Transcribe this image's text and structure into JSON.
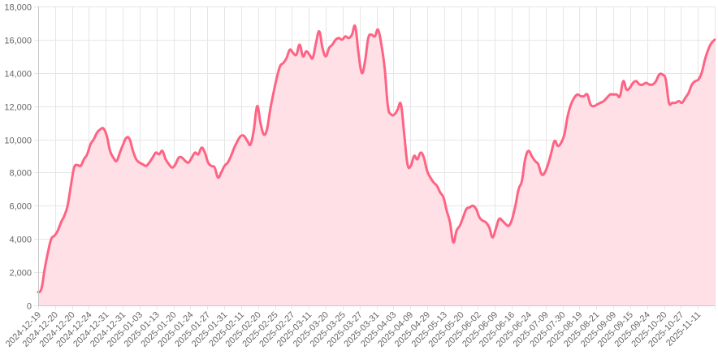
{
  "chart_data": {
    "type": "area",
    "title": "",
    "xlabel": "",
    "ylabel": "",
    "ylim": [
      0,
      18000
    ],
    "y_ticks": [
      0,
      2000,
      4000,
      6000,
      8000,
      10000,
      12000,
      14000,
      16000,
      18000
    ],
    "y_tick_labels": [
      "0",
      "2,000",
      "4,000",
      "6,000",
      "8,000",
      "10,000",
      "12,000",
      "14,000",
      "16,000",
      "18,000"
    ],
    "x_tick_labels": [
      "2024-12-19",
      "2024-12-20",
      "2024-12-20",
      "2024-12-24",
      "2024-12-31",
      "2024-12-31",
      "2025-01-03",
      "2025-01-13",
      "2025-01-20",
      "2025-01-24",
      "2025-01-27",
      "2025-01-31",
      "2025-02-11",
      "2025-02-20",
      "2025-02-25",
      "2025-02-27",
      "2025-03-11",
      "2025-03-20",
      "2025-03-25",
      "2025-03-27",
      "2025-03-31",
      "2025-04-03",
      "2025-04-09",
      "2025-04-29",
      "2025-05-13",
      "2025-05-20",
      "2025-06-02",
      "2025-06-09",
      "2025-06-16",
      "2025-06-24",
      "2025-07-09",
      "2025-07-30",
      "2025-08-19",
      "2025-08-21",
      "2025-09-09",
      "2025-09-15",
      "2025-09-24",
      "2025-10-20",
      "2025-10-27",
      "2025-11-11"
    ],
    "grid": true,
    "line_color": "#ff6384",
    "fill_color": "#ffe0e6",
    "series": [
      {
        "values": [
          800,
          1000,
          2200,
          3200,
          4000,
          4200,
          4500,
          5000,
          5400,
          6000,
          7200,
          8300,
          8450,
          8400,
          8800,
          9100,
          9700,
          10000,
          10400,
          10600,
          10650,
          10200,
          9300,
          8900,
          8700,
          9200,
          9700,
          10100,
          10000,
          9300,
          8800,
          8600,
          8500,
          8400,
          8600,
          8900,
          9200,
          9100,
          9300,
          8800,
          8500,
          8300,
          8500,
          8900,
          8900,
          8700,
          8600,
          8900,
          9200,
          9100,
          9500,
          9200,
          8600,
          8400,
          8300,
          7700,
          8000,
          8400,
          8600,
          9000,
          9500,
          9900,
          10200,
          10200,
          9900,
          9700,
          10600,
          12000,
          11000,
          10300,
          10600,
          11800,
          12800,
          13700,
          14400,
          14600,
          14900,
          15400,
          15200,
          15100,
          15700,
          15000,
          15300,
          15100,
          14900,
          15800,
          16500,
          15500,
          15000,
          15500,
          15700,
          16000,
          16100,
          16000,
          16200,
          16100,
          16300,
          16800,
          15200,
          14000,
          14700,
          16100,
          16300,
          16200,
          16600,
          15700,
          14300,
          12000,
          11500,
          11500,
          11800,
          12100,
          10300,
          8500,
          8400,
          9000,
          8800,
          9200,
          8900,
          8100,
          7700,
          7400,
          7200,
          6800,
          6500,
          5700,
          5000,
          3800,
          4500,
          4800,
          5300,
          5800,
          5900,
          6000,
          5800,
          5300,
          5100,
          5000,
          4700,
          4100,
          4600,
          5200,
          5100,
          4900,
          4800,
          5200,
          6000,
          7000,
          7500,
          8800,
          9300,
          9000,
          8700,
          8500,
          7900,
          8000,
          8500,
          9200,
          9900,
          9600,
          9800,
          10300,
          11400,
          12100,
          12500,
          12700,
          12600,
          12600,
          12700,
          12100,
          12000,
          12100,
          12200,
          12300,
          12500,
          12700,
          12700,
          12700,
          12600,
          13500,
          13000,
          13100,
          13400,
          13500,
          13300,
          13300,
          13400,
          13300,
          13300,
          13500,
          13900,
          13900,
          13600,
          12200,
          12200,
          12200,
          12300,
          12200,
          12500,
          12800,
          13300,
          13500,
          13600,
          14000,
          14800,
          15400,
          15800,
          16000
        ]
      }
    ]
  }
}
